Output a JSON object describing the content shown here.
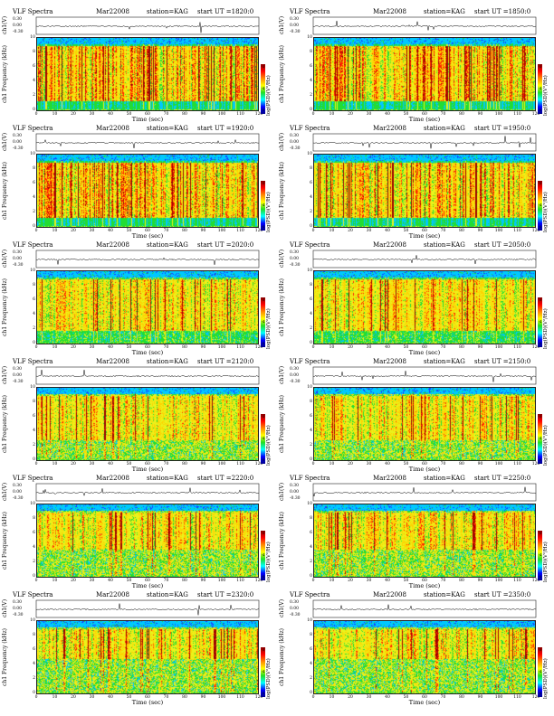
{
  "header": {
    "title": "VLF Spectra",
    "date": "Mar22008",
    "station": "station=KAG",
    "start_prefix": "start  UT ="
  },
  "labels": {
    "wave_ylabel": "ch1(V)",
    "wave_ticks": [
      "0.30",
      "0.00",
      "-0.30"
    ],
    "spec_ylabel_top": "ch1",
    "spec_ylabel": "Frequency  (kHz)",
    "y_ticks": [
      "10",
      "8",
      "6",
      "4",
      "2",
      "0"
    ],
    "x_ticks": [
      "0",
      "10",
      "20",
      "30",
      "40",
      "50",
      "60",
      "70",
      "80",
      "90",
      "100",
      "110",
      "120"
    ],
    "xlabel": "Time  (sec)",
    "colorbar_label": "log(PSD)(V²/Hz)",
    "colorbar_ticks": [
      "-3",
      "-4",
      "-5"
    ]
  },
  "colors": {
    "background": "#00ccff",
    "mid": "#22dd22",
    "high": "#ffff00",
    "peak": "#ff0000",
    "max": "#8b0000"
  },
  "chart_data": [
    {
      "type": "heatmap",
      "start_ut": "1820:0",
      "xlim": [
        0,
        120
      ],
      "ylim": [
        0,
        10
      ],
      "xlabel": "Time  (sec)",
      "ylabel": "Frequency  (kHz)",
      "band_khz": [
        1.5,
        9
      ],
      "intensity": "high",
      "noise_floor": "low"
    },
    {
      "type": "heatmap",
      "start_ut": "1850:0",
      "xlim": [
        0,
        120
      ],
      "ylim": [
        0,
        10
      ],
      "xlabel": "Time  (sec)",
      "ylabel": "Frequency  (kHz)",
      "band_khz": [
        1.5,
        9
      ],
      "intensity": "high",
      "noise_floor": "low"
    },
    {
      "type": "heatmap",
      "start_ut": "1920:0",
      "xlim": [
        0,
        120
      ],
      "ylim": [
        0,
        10
      ],
      "xlabel": "Time  (sec)",
      "ylabel": "Frequency  (kHz)",
      "band_khz": [
        1.5,
        9
      ],
      "intensity": "high",
      "noise_floor": "low"
    },
    {
      "type": "heatmap",
      "start_ut": "1950:0",
      "xlim": [
        0,
        120
      ],
      "ylim": [
        0,
        10
      ],
      "xlabel": "Time  (sec)",
      "ylabel": "Frequency  (kHz)",
      "band_khz": [
        1.5,
        9
      ],
      "intensity": "high",
      "noise_floor": "low"
    },
    {
      "type": "heatmap",
      "start_ut": "2020:0",
      "xlim": [
        0,
        120
      ],
      "ylim": [
        0,
        10
      ],
      "xlabel": "Time  (sec)",
      "ylabel": "Frequency  (kHz)",
      "band_khz": [
        2,
        9
      ],
      "intensity": "medium",
      "noise_floor": "medium"
    },
    {
      "type": "heatmap",
      "start_ut": "2050:0",
      "xlim": [
        0,
        120
      ],
      "ylim": [
        0,
        10
      ],
      "xlabel": "Time  (sec)",
      "ylabel": "Frequency  (kHz)",
      "band_khz": [
        2,
        9
      ],
      "intensity": "medium",
      "noise_floor": "medium"
    },
    {
      "type": "heatmap",
      "start_ut": "2120:0",
      "xlim": [
        0,
        120
      ],
      "ylim": [
        0,
        10
      ],
      "xlabel": "Time  (sec)",
      "ylabel": "Frequency  (kHz)",
      "band_khz": [
        3,
        9
      ],
      "intensity": "medium",
      "noise_floor": "high"
    },
    {
      "type": "heatmap",
      "start_ut": "2150:0",
      "xlim": [
        0,
        120
      ],
      "ylim": [
        0,
        10
      ],
      "xlabel": "Time  (sec)",
      "ylabel": "Frequency  (kHz)",
      "band_khz": [
        3,
        9
      ],
      "intensity": "medium",
      "noise_floor": "high"
    },
    {
      "type": "heatmap",
      "start_ut": "2220:0",
      "xlim": [
        0,
        120
      ],
      "ylim": [
        0,
        10
      ],
      "xlabel": "Time  (sec)",
      "ylabel": "Frequency  (kHz)",
      "band_khz": [
        4,
        9
      ],
      "intensity": "medium",
      "noise_floor": "high"
    },
    {
      "type": "heatmap",
      "start_ut": "2250:0",
      "xlim": [
        0,
        120
      ],
      "ylim": [
        0,
        10
      ],
      "xlabel": "Time  (sec)",
      "ylabel": "Frequency  (kHz)",
      "band_khz": [
        4,
        9
      ],
      "intensity": "medium",
      "noise_floor": "high"
    },
    {
      "type": "heatmap",
      "start_ut": "2320:0",
      "xlim": [
        0,
        120
      ],
      "ylim": [
        0,
        10
      ],
      "xlabel": "Time  (sec)",
      "ylabel": "Frequency  (kHz)",
      "band_khz": [
        5,
        9
      ],
      "intensity": "medium",
      "noise_floor": "high"
    },
    {
      "type": "heatmap",
      "start_ut": "2350:0",
      "xlim": [
        0,
        120
      ],
      "ylim": [
        0,
        10
      ],
      "xlabel": "Time  (sec)",
      "ylabel": "Frequency  (kHz)",
      "band_khz": [
        5,
        9
      ],
      "intensity": "medium",
      "noise_floor": "high"
    }
  ]
}
